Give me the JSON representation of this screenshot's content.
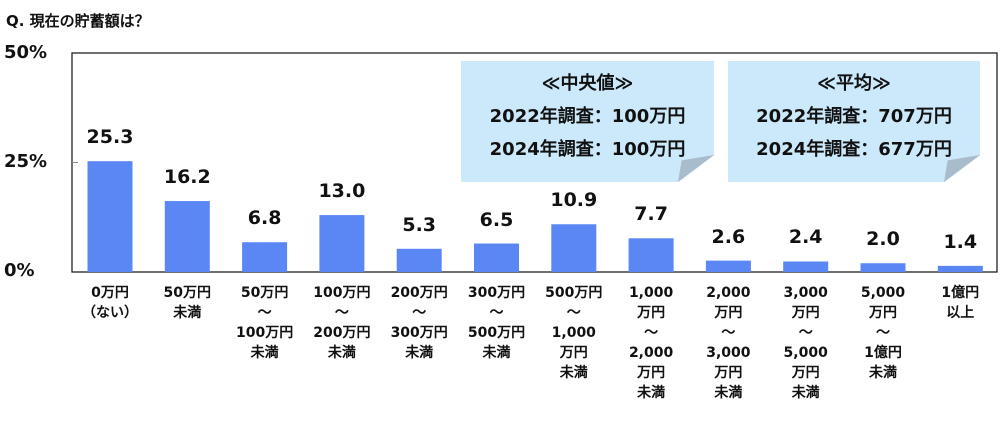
{
  "title": "Q.  現在の貯蓄額は？",
  "callouts": [
    {
      "heading": "≪中央値≫",
      "line1": "2022年調査：100万円",
      "line2": "2024年調査：100万円"
    },
    {
      "heading": "≪平均≫",
      "line1": "2022年調査：707万円",
      "line2": "2024年調査：677万円"
    }
  ],
  "colors": {
    "bar": "#5b87f5",
    "callout": "#cce9fb",
    "callout_fold": "#a9bccc"
  },
  "chart_data": {
    "type": "bar",
    "title": "Q.  現在の貯蓄額は？",
    "ylim": [
      0,
      50
    ],
    "yticks": [
      "0%",
      "25%",
      "50%"
    ],
    "grid": false,
    "categories": [
      [
        "0万円",
        "（ない）"
      ],
      [
        "50万円",
        "未満"
      ],
      [
        "50万円",
        "～",
        "100万円",
        "未満"
      ],
      [
        "100万円",
        "～",
        "200万円",
        "未満"
      ],
      [
        "200万円",
        "～",
        "300万円",
        "未満"
      ],
      [
        "300万円",
        "～",
        "500万円",
        "未満"
      ],
      [
        "500万円",
        "～",
        "1,000",
        "万円",
        "未満"
      ],
      [
        "1,000",
        "万円",
        "～",
        "2,000",
        "万円",
        "未満"
      ],
      [
        "2,000",
        "万円",
        "～",
        "3,000",
        "万円",
        "未満"
      ],
      [
        "3,000",
        "万円",
        "～",
        "5,000",
        "万円",
        "未満"
      ],
      [
        "5,000",
        "万円",
        "～",
        "1億円",
        "未満"
      ],
      [
        "1億円",
        "以上"
      ]
    ],
    "values": [
      25.3,
      16.2,
      6.8,
      13.0,
      5.3,
      6.5,
      10.9,
      7.7,
      2.6,
      2.4,
      2.0,
      1.4
    ],
    "value_labels": [
      "25.3",
      "16.2",
      "6.8",
      "13.0",
      "5.3",
      "6.5",
      "10.9",
      "7.7",
      "2.6",
      "2.4",
      "2.0",
      "1.4"
    ]
  }
}
